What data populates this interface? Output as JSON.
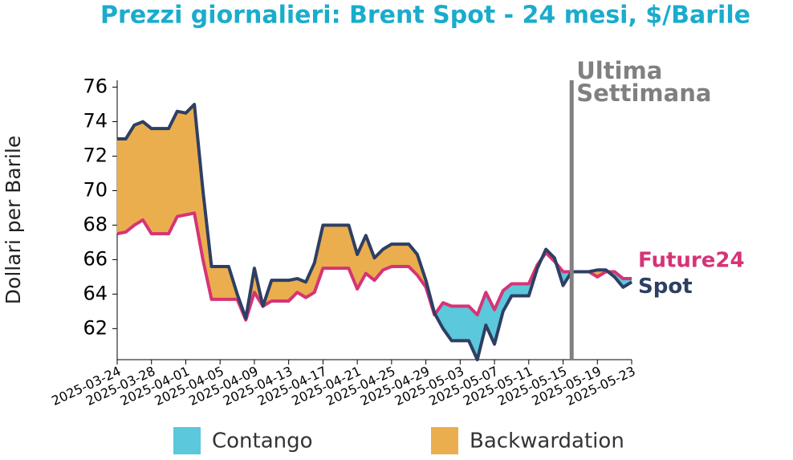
{
  "chart_data": {
    "type": "line-fill-between",
    "title": "Prezzi giornalieri: Brent Spot - 24 mesi, $/Barile",
    "y_label": "Dollari per Barile",
    "x": [
      "2025-03-24",
      "2025-03-25",
      "2025-03-26",
      "2025-03-27",
      "2025-03-28",
      "2025-03-29",
      "2025-03-30",
      "2025-03-31",
      "2025-04-01",
      "2025-04-02",
      "2025-04-03",
      "2025-04-04",
      "2025-04-05",
      "2025-04-06",
      "2025-04-07",
      "2025-04-08",
      "2025-04-09",
      "2025-04-10",
      "2025-04-11",
      "2025-04-12",
      "2025-04-13",
      "2025-04-14",
      "2025-04-15",
      "2025-04-16",
      "2025-04-17",
      "2025-04-18",
      "2025-04-19",
      "2025-04-20",
      "2025-04-21",
      "2025-04-22",
      "2025-04-23",
      "2025-04-24",
      "2025-04-25",
      "2025-04-26",
      "2025-04-27",
      "2025-04-28",
      "2025-04-29",
      "2025-04-30",
      "2025-05-01",
      "2025-05-02",
      "2025-05-03",
      "2025-05-04",
      "2025-05-05",
      "2025-05-06",
      "2025-05-07",
      "2025-05-08",
      "2025-05-09",
      "2025-05-10",
      "2025-05-11",
      "2025-05-12",
      "2025-05-13",
      "2025-05-14",
      "2025-05-15",
      "2025-05-16",
      "2025-05-17",
      "2025-05-18",
      "2025-05-19",
      "2025-05-20",
      "2025-05-21",
      "2025-05-22",
      "2025-05-23"
    ],
    "series": [
      {
        "name": "Spot",
        "color": "#2e3f63",
        "values": [
          73.0,
          73.0,
          73.8,
          74.0,
          73.6,
          73.6,
          73.6,
          74.6,
          74.5,
          75.0,
          70.0,
          65.6,
          65.6,
          65.6,
          64.0,
          62.6,
          65.5,
          63.3,
          64.8,
          64.8,
          64.8,
          64.9,
          64.7,
          65.8,
          68.0,
          68.0,
          68.0,
          68.0,
          66.3,
          67.4,
          66.1,
          66.6,
          66.9,
          66.9,
          66.9,
          66.3,
          64.8,
          62.9,
          62.0,
          61.3,
          61.3,
          61.3,
          60.2,
          62.2,
          61.1,
          63.0,
          63.9,
          63.9,
          63.9,
          65.5,
          66.6,
          66.1,
          64.5,
          65.3,
          65.3,
          65.3,
          65.4,
          65.4,
          65.0,
          64.4,
          64.7
        ]
      },
      {
        "name": "Future24",
        "color": "#d63477",
        "values": [
          67.5,
          67.6,
          68.0,
          68.3,
          67.5,
          67.5,
          67.5,
          68.5,
          68.6,
          68.7,
          66.0,
          63.7,
          63.7,
          63.7,
          63.7,
          62.5,
          64.1,
          63.3,
          63.6,
          63.6,
          63.6,
          64.1,
          63.8,
          64.1,
          65.5,
          65.5,
          65.5,
          65.5,
          64.3,
          65.2,
          64.8,
          65.4,
          65.6,
          65.6,
          65.6,
          65.1,
          64.4,
          62.8,
          63.5,
          63.3,
          63.3,
          63.3,
          62.8,
          64.1,
          63.1,
          64.2,
          64.6,
          64.6,
          64.6,
          65.7,
          66.4,
          65.9,
          65.3,
          65.3,
          65.3,
          65.3,
          65.0,
          65.3,
          65.3,
          64.9,
          64.9
        ]
      }
    ],
    "fill_legend": [
      {
        "name": "Contango",
        "color": "#5bc8dc"
      },
      {
        "name": "Backwardation",
        "color": "#ebae4e"
      }
    ],
    "marker": {
      "x": "2025-05-16",
      "label": [
        "Ultima",
        "Settimana"
      ],
      "color": "#808080"
    },
    "xlim": [
      "2025-03-24",
      "2025-05-23"
    ],
    "xticks": [
      "2025-03-24",
      "2025-03-28",
      "2025-04-01",
      "2025-04-05",
      "2025-04-09",
      "2025-04-13",
      "2025-04-17",
      "2025-04-21",
      "2025-04-25",
      "2025-04-29",
      "2025-05-03",
      "2025-05-07",
      "2025-05-11",
      "2025-05-15",
      "2025-05-19",
      "2025-05-23"
    ],
    "ylim": [
      60.2,
      76.4
    ],
    "yticks": [
      62,
      64,
      66,
      68,
      70,
      72,
      74,
      76
    ]
  }
}
